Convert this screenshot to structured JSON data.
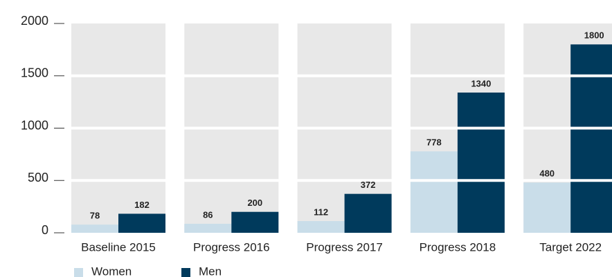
{
  "chart_data": {
    "type": "bar",
    "categories": [
      "Baseline 2015",
      "Progress 2016",
      "Progress 2017",
      "Progress 2018",
      "Target 2022"
    ],
    "series": [
      {
        "name": "Women",
        "color": "#c9dde9",
        "values": [
          78,
          86,
          112,
          778,
          480
        ]
      },
      {
        "name": "Men",
        "color": "#003a5c",
        "values": [
          182,
          200,
          372,
          1340,
          1800
        ]
      }
    ],
    "ylim": [
      0,
      2000
    ],
    "yticks": [
      0,
      500,
      1000,
      1500,
      2000
    ],
    "grid": true,
    "legend": "bottom"
  }
}
